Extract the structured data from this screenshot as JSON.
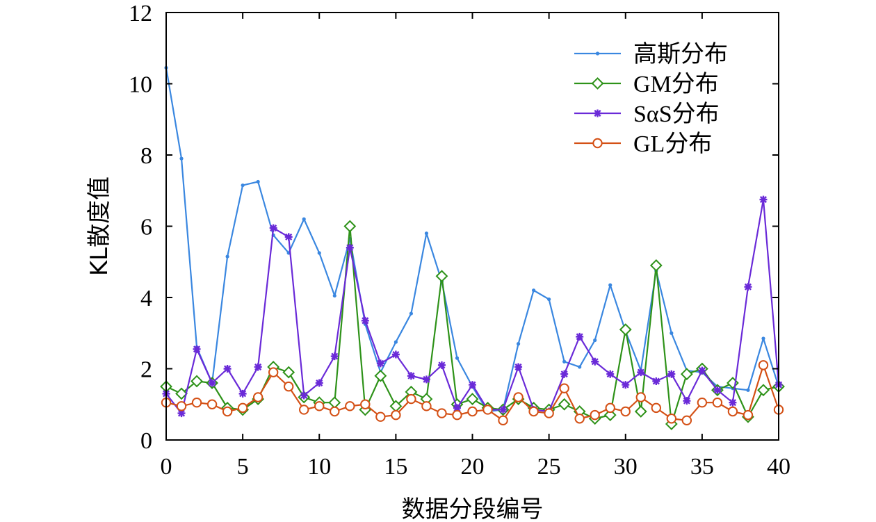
{
  "chart_data": {
    "type": "line",
    "title": "",
    "xlabel": "数据分段编号",
    "ylabel": "KL散度值",
    "xlim": [
      0,
      40
    ],
    "ylim": [
      0,
      12
    ],
    "xticks": [
      0,
      5,
      10,
      15,
      20,
      25,
      30,
      35,
      40
    ],
    "yticks": [
      0,
      2,
      4,
      6,
      8,
      10,
      12
    ],
    "legend_position": "top-right",
    "x": [
      0,
      1,
      2,
      3,
      4,
      5,
      6,
      7,
      8,
      9,
      10,
      11,
      12,
      13,
      14,
      15,
      16,
      17,
      18,
      19,
      20,
      21,
      22,
      23,
      24,
      25,
      26,
      27,
      28,
      29,
      30,
      31,
      32,
      33,
      34,
      35,
      36,
      37,
      38,
      39,
      40
    ],
    "series": [
      {
        "name": "高斯分布",
        "color": "#3a87e0",
        "marker": "dot",
        "values": [
          10.45,
          7.9,
          2.6,
          1.6,
          5.15,
          7.15,
          7.25,
          5.75,
          5.25,
          6.2,
          5.25,
          4.05,
          5.65,
          3.25,
          1.9,
          2.75,
          3.55,
          5.8,
          4.45,
          2.3,
          1.5,
          0.8,
          0.85,
          2.7,
          4.2,
          3.95,
          2.2,
          2.05,
          2.8,
          4.35,
          3.05,
          1.95,
          4.75,
          3.0,
          1.95,
          1.9,
          1.5,
          1.45,
          1.4,
          2.85,
          1.5
        ]
      },
      {
        "name": "GM分布",
        "color": "#2e9219",
        "marker": "diamond",
        "values": [
          1.5,
          1.3,
          1.65,
          1.6,
          0.9,
          0.85,
          1.15,
          2.05,
          1.9,
          1.2,
          1.05,
          1.05,
          6.0,
          0.85,
          1.8,
          0.95,
          1.35,
          1.15,
          4.6,
          1.0,
          1.15,
          0.9,
          0.85,
          1.15,
          0.9,
          0.85,
          1.0,
          0.8,
          0.6,
          0.7,
          3.1,
          0.8,
          4.9,
          0.45,
          1.85,
          2.0,
          1.4,
          1.6,
          0.65,
          1.4,
          1.5
        ]
      },
      {
        "name": "SαS分布",
        "color": "#6a2ad8",
        "marker": "asterisk",
        "values": [
          1.3,
          0.75,
          2.55,
          1.6,
          2.0,
          1.3,
          2.05,
          5.95,
          5.7,
          1.25,
          1.6,
          2.35,
          5.4,
          3.35,
          2.15,
          2.4,
          1.8,
          1.7,
          2.1,
          0.9,
          1.55,
          0.85,
          0.85,
          2.05,
          0.85,
          0.8,
          1.85,
          2.9,
          2.2,
          1.85,
          1.55,
          1.9,
          1.65,
          1.85,
          1.1,
          1.95,
          1.4,
          1.05,
          4.3,
          6.75,
          1.55
        ]
      },
      {
        "name": "GL分布",
        "color": "#d45015",
        "marker": "circle",
        "values": [
          1.05,
          0.95,
          1.05,
          1.0,
          0.8,
          0.9,
          1.2,
          1.9,
          1.5,
          0.85,
          0.95,
          0.8,
          0.95,
          1.0,
          0.65,
          0.7,
          1.15,
          0.95,
          0.75,
          0.7,
          0.8,
          0.85,
          0.55,
          1.2,
          0.8,
          0.75,
          1.45,
          0.6,
          0.7,
          0.9,
          0.8,
          1.2,
          0.9,
          0.6,
          0.55,
          1.05,
          1.05,
          0.8,
          0.7,
          2.1,
          0.85
        ]
      }
    ]
  }
}
